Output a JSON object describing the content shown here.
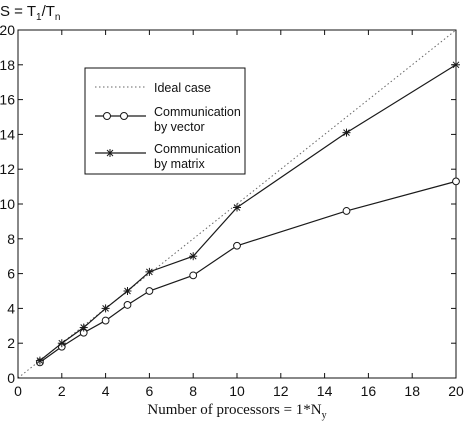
{
  "chart_data": {
    "type": "line",
    "title": "",
    "ylabel_main": "S = T",
    "ylabel_sub1": "1",
    "ylabel_slash": "/T",
    "ylabel_sub2": "n",
    "xlabel": "Number of processors = 1*N",
    "xlabel_sub": "y",
    "xlim": [
      0,
      20
    ],
    "ylim": [
      0,
      20
    ],
    "x_ticks": [
      0,
      2,
      4,
      6,
      8,
      10,
      12,
      14,
      16,
      18,
      20
    ],
    "y_ticks": [
      0,
      2,
      4,
      6,
      8,
      10,
      12,
      14,
      16,
      18,
      20
    ],
    "grid": false,
    "legend_position": "top-left",
    "series": [
      {
        "name": "Ideal case",
        "style": "dotted",
        "marker": "none",
        "x": [
          0,
          20
        ],
        "y": [
          0,
          20
        ]
      },
      {
        "name": "Communication by vector",
        "legend_lines": [
          "Communication",
          "by vector"
        ],
        "style": "solid",
        "marker": "circle",
        "x": [
          1,
          2,
          3,
          4,
          5,
          6,
          8,
          10,
          15,
          20
        ],
        "y": [
          0.9,
          1.8,
          2.6,
          3.3,
          4.2,
          5.0,
          5.9,
          7.6,
          9.6,
          11.3
        ]
      },
      {
        "name": "Communication by matrix",
        "legend_lines": [
          "Communication",
          "by matrix"
        ],
        "style": "solid",
        "marker": "star",
        "x": [
          1,
          2,
          3,
          4,
          5,
          6,
          8,
          10,
          15,
          20
        ],
        "y": [
          1.0,
          2.0,
          2.9,
          4.0,
          5.0,
          6.1,
          7.0,
          9.8,
          14.1,
          18.0
        ]
      }
    ]
  },
  "colors": {
    "axis": "#111111",
    "line": "#1a1a1a",
    "ideal": "#666666",
    "background": "#ffffff"
  }
}
